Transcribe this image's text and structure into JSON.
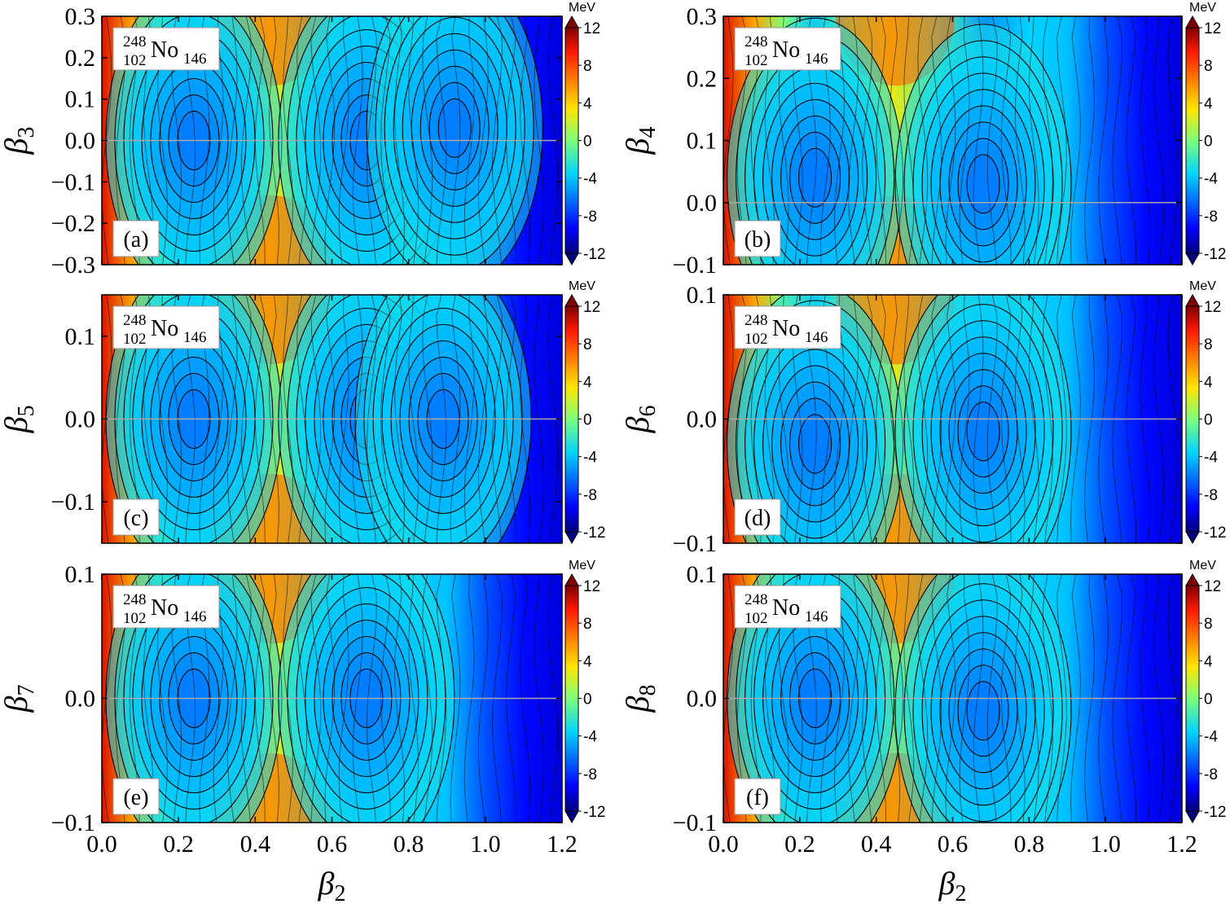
{
  "chart_data": [
    {
      "type": "heatmap",
      "panel_label": "(a)",
      "nucleus": {
        "mass": "248",
        "charge": "102",
        "symbol": "No",
        "neutron": "146"
      },
      "xlabel": {
        "sym": "β",
        "sub": "2"
      },
      "ylabel": {
        "sym": "β",
        "sub": "3"
      },
      "xlim": [
        0.0,
        1.2
      ],
      "ylim": [
        -0.3,
        0.3
      ],
      "xticks": [
        "0.0",
        "0.2",
        "0.4",
        "0.6",
        "0.8",
        "1.0",
        "1.2"
      ],
      "yticks": [
        {
          "v": 0.3,
          "l": "0.3"
        },
        {
          "v": 0.2,
          "l": "0.2"
        },
        {
          "v": 0.1,
          "l": "0.1"
        },
        {
          "v": 0.0,
          "l": "0.0"
        },
        {
          "v": -0.1,
          "l": "−0.1"
        },
        {
          "v": -0.2,
          "l": "−0.2"
        },
        {
          "v": -0.3,
          "l": "−0.3"
        }
      ],
      "colorbar": {
        "unit": "MeV",
        "range": [
          -12,
          12
        ],
        "ticks": [
          "12",
          "8",
          "4",
          "0",
          "-4",
          "-8",
          "-12"
        ]
      },
      "minima": [
        {
          "x": 0.24,
          "y": 0.0
        },
        {
          "x": 0.69,
          "y": 0.0
        },
        {
          "x": 0.92,
          "y": 0.03
        }
      ],
      "saddle_x": 0.44,
      "reference_line_y": 0.0
    },
    {
      "type": "heatmap",
      "panel_label": "(b)",
      "nucleus": {
        "mass": "248",
        "charge": "102",
        "symbol": "No",
        "neutron": "146"
      },
      "xlabel": {
        "sym": "β",
        "sub": "2"
      },
      "ylabel": {
        "sym": "β",
        "sub": "4"
      },
      "xlim": [
        0.0,
        1.2
      ],
      "ylim": [
        -0.1,
        0.3
      ],
      "xticks": [
        "0.0",
        "0.2",
        "0.4",
        "0.6",
        "0.8",
        "1.0",
        "1.2"
      ],
      "yticks": [
        {
          "v": 0.3,
          "l": "0.3"
        },
        {
          "v": 0.2,
          "l": "0.2"
        },
        {
          "v": 0.1,
          "l": "0.1"
        },
        {
          "v": 0.0,
          "l": "0.0"
        },
        {
          "v": -0.1,
          "l": "−0.1"
        }
      ],
      "colorbar": {
        "unit": "MeV",
        "range": [
          -12,
          12
        ],
        "ticks": [
          "12",
          "8",
          "4",
          "0",
          "-4",
          "-8",
          "-12"
        ]
      },
      "minima": [
        {
          "x": 0.24,
          "y": 0.04
        },
        {
          "x": 0.68,
          "y": 0.03
        }
      ],
      "saddle_x": 0.45,
      "reference_line_y": 0.0
    },
    {
      "type": "heatmap",
      "panel_label": "(c)",
      "nucleus": {
        "mass": "248",
        "charge": "102",
        "symbol": "No",
        "neutron": "146"
      },
      "xlabel": {
        "sym": "β",
        "sub": "2"
      },
      "ylabel": {
        "sym": "β",
        "sub": "5"
      },
      "xlim": [
        0.0,
        1.2
      ],
      "ylim": [
        -0.15,
        0.15
      ],
      "xticks": [
        "0.0",
        "0.2",
        "0.4",
        "0.6",
        "0.8",
        "1.0",
        "1.2"
      ],
      "yticks": [
        {
          "v": 0.1,
          "l": "0.1"
        },
        {
          "v": 0.0,
          "l": "0.0"
        },
        {
          "v": -0.1,
          "l": "−0.1"
        }
      ],
      "colorbar": {
        "unit": "MeV",
        "range": [
          -12,
          12
        ],
        "ticks": [
          "12",
          "8",
          "4",
          "0",
          "-4",
          "-8",
          "-12"
        ]
      },
      "minima": [
        {
          "x": 0.24,
          "y": 0.0
        },
        {
          "x": 0.69,
          "y": 0.0
        },
        {
          "x": 0.89,
          "y": 0.0
        }
      ],
      "saddle_x": 0.44,
      "reference_line_y": 0.0
    },
    {
      "type": "heatmap",
      "panel_label": "(d)",
      "nucleus": {
        "mass": "248",
        "charge": "102",
        "symbol": "No",
        "neutron": "146"
      },
      "xlabel": {
        "sym": "β",
        "sub": "2"
      },
      "ylabel": {
        "sym": "β",
        "sub": "6"
      },
      "xlim": [
        0.0,
        1.2
      ],
      "ylim": [
        -0.1,
        0.1
      ],
      "xticks": [
        "0.0",
        "0.2",
        "0.4",
        "0.6",
        "0.8",
        "1.0",
        "1.2"
      ],
      "yticks": [
        {
          "v": 0.1,
          "l": "0.1"
        },
        {
          "v": 0.0,
          "l": "0.0"
        },
        {
          "v": -0.1,
          "l": "−0.1"
        }
      ],
      "colorbar": {
        "unit": "MeV",
        "range": [
          -12,
          12
        ],
        "ticks": [
          "12",
          "8",
          "4",
          "0",
          "-4",
          "-8",
          "-12"
        ]
      },
      "minima": [
        {
          "x": 0.24,
          "y": -0.02
        },
        {
          "x": 0.68,
          "y": -0.01
        }
      ],
      "saddle_x": 0.45,
      "reference_line_y": 0.0
    },
    {
      "type": "heatmap",
      "panel_label": "(e)",
      "nucleus": {
        "mass": "248",
        "charge": "102",
        "symbol": "No",
        "neutron": "146"
      },
      "xlabel": {
        "sym": "β",
        "sub": "2"
      },
      "ylabel": {
        "sym": "β",
        "sub": "7"
      },
      "xlim": [
        0.0,
        1.2
      ],
      "ylim": [
        -0.1,
        0.1
      ],
      "xticks": [
        "0.0",
        "0.2",
        "0.4",
        "0.6",
        "0.8",
        "1.0",
        "1.2"
      ],
      "yticks": [
        {
          "v": 0.1,
          "l": "0.1"
        },
        {
          "v": 0.0,
          "l": "0.0"
        },
        {
          "v": -0.1,
          "l": "−0.1"
        }
      ],
      "colorbar": {
        "unit": "MeV",
        "range": [
          -12,
          12
        ],
        "ticks": [
          "12",
          "8",
          "4",
          "0",
          "-4",
          "-8",
          "-12"
        ]
      },
      "minima": [
        {
          "x": 0.24,
          "y": 0.0
        },
        {
          "x": 0.69,
          "y": 0.0
        }
      ],
      "saddle_x": 0.44,
      "reference_line_y": 0.0
    },
    {
      "type": "heatmap",
      "panel_label": "(f)",
      "nucleus": {
        "mass": "248",
        "charge": "102",
        "symbol": "No",
        "neutron": "146"
      },
      "xlabel": {
        "sym": "β",
        "sub": "2"
      },
      "ylabel": {
        "sym": "β",
        "sub": "8"
      },
      "xlim": [
        0.0,
        1.2
      ],
      "ylim": [
        -0.1,
        0.1
      ],
      "xticks": [
        "0.0",
        "0.2",
        "0.4",
        "0.6",
        "0.8",
        "1.0",
        "1.2"
      ],
      "yticks": [
        {
          "v": 0.1,
          "l": "0.1"
        },
        {
          "v": 0.0,
          "l": "0.0"
        },
        {
          "v": -0.1,
          "l": "−0.1"
        }
      ],
      "colorbar": {
        "unit": "MeV",
        "range": [
          -12,
          12
        ],
        "ticks": [
          "12",
          "8",
          "4",
          "0",
          "-4",
          "-8",
          "-12"
        ]
      },
      "minima": [
        {
          "x": 0.24,
          "y": 0.0
        },
        {
          "x": 0.68,
          "y": -0.01
        }
      ],
      "saddle_x": 0.45,
      "reference_line_y": 0.0
    }
  ]
}
